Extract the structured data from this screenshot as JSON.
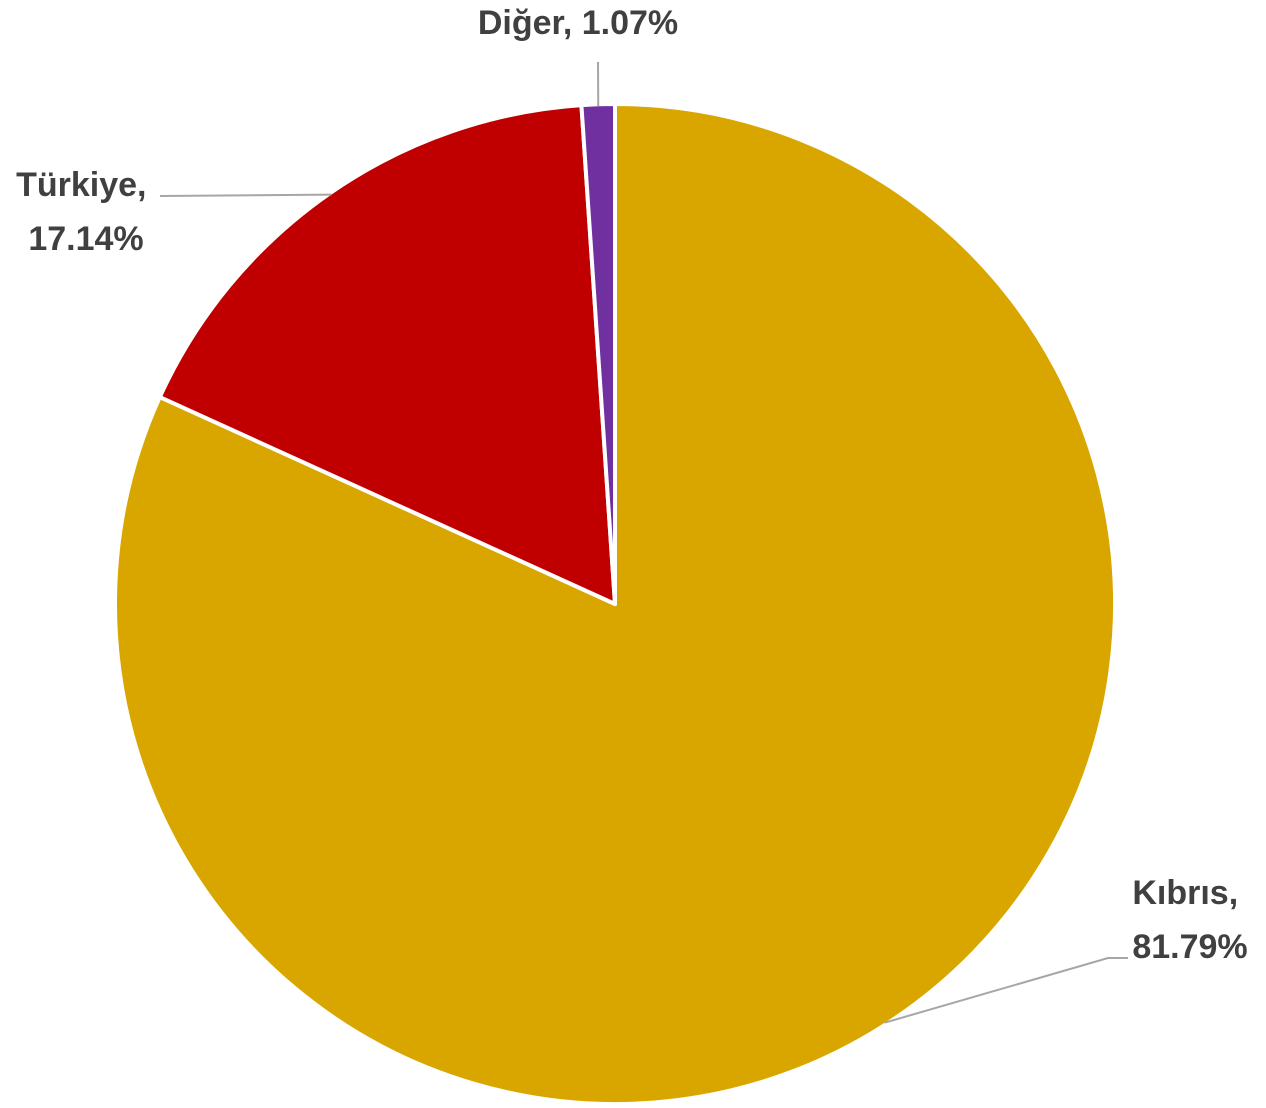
{
  "chart_data": {
    "type": "pie",
    "title": "",
    "slices": [
      {
        "name": "Kıbrıs",
        "value": 81.79,
        "color": "#D9A600",
        "label_line1": "Kıbrıs,",
        "label_line2": "81.79%"
      },
      {
        "name": "Türkiye",
        "value": 17.14,
        "color": "#C00000",
        "label_line1": "Türkiye,",
        "label_line2": "17.14%"
      },
      {
        "name": "Diğer",
        "value": 1.07,
        "color": "#7030A0",
        "label_line1": "Diğer, 1.07%",
        "label_line2": ""
      }
    ],
    "start_angle": "12 o'clock",
    "direction": "clockwise",
    "legend": "none",
    "data_labels": "outside-with-leader-lines"
  }
}
